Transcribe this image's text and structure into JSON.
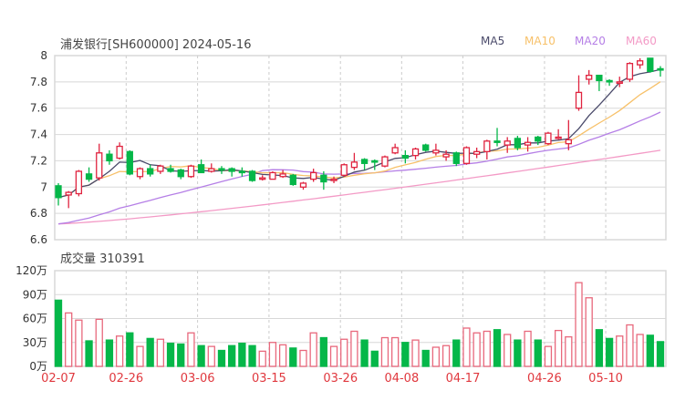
{
  "header": {
    "title": "浦发银行[SH600000] 2024-05-16"
  },
  "legend": [
    {
      "label": "MA5",
      "color": "#4a4a6a"
    },
    {
      "label": "MA10",
      "color": "#f7c16a"
    },
    {
      "label": "MA20",
      "color": "#b57fe6"
    },
    {
      "label": "MA60",
      "color": "#f39ac6"
    }
  ],
  "volume_panel": {
    "title": "成交量 310391"
  },
  "colors": {
    "up": "#e0233f",
    "down": "#05b749",
    "grid": "#d8d8d8"
  },
  "chart_data": [
    {
      "type": "candlestick",
      "title": "浦发银行[SH600000] 2024-05-16",
      "ylim": [
        6.6,
        8
      ],
      "yticks": [
        "6.6",
        "6.8",
        "7",
        "7.2",
        "7.4",
        "7.6",
        "7.8",
        "8"
      ],
      "xticks": [
        {
          "index": 0,
          "label": "02-07"
        },
        {
          "index": 7,
          "label": "02-26"
        },
        {
          "index": 14,
          "label": "03-06"
        },
        {
          "index": 21,
          "label": "03-15"
        },
        {
          "index": 28,
          "label": "03-26"
        },
        {
          "index": 34,
          "label": "04-08"
        },
        {
          "index": 40,
          "label": "04-17"
        },
        {
          "index": 48,
          "label": "04-26"
        },
        {
          "index": 54,
          "label": "05-10"
        }
      ],
      "ohlc": [
        [
          7.01,
          7.03,
          6.86,
          6.92
        ],
        [
          6.94,
          6.97,
          6.84,
          6.96
        ],
        [
          6.95,
          7.13,
          6.93,
          7.12
        ],
        [
          7.1,
          7.15,
          7.04,
          7.06
        ],
        [
          7.07,
          7.33,
          7.05,
          7.26
        ],
        [
          7.25,
          7.28,
          7.17,
          7.2
        ],
        [
          7.22,
          7.34,
          7.21,
          7.31
        ],
        [
          7.27,
          7.28,
          7.09,
          7.1
        ],
        [
          7.08,
          7.15,
          7.06,
          7.14
        ],
        [
          7.14,
          7.17,
          7.08,
          7.1
        ],
        [
          7.12,
          7.17,
          7.1,
          7.16
        ],
        [
          7.14,
          7.17,
          7.11,
          7.12
        ],
        [
          7.13,
          7.14,
          7.06,
          7.08
        ],
        [
          7.08,
          7.17,
          7.07,
          7.16
        ],
        [
          7.17,
          7.21,
          7.11,
          7.11
        ],
        [
          7.12,
          7.18,
          7.11,
          7.14
        ],
        [
          7.14,
          7.16,
          7.1,
          7.13
        ],
        [
          7.14,
          7.15,
          7.08,
          7.12
        ],
        [
          7.12,
          7.15,
          7.08,
          7.11
        ],
        [
          7.12,
          7.13,
          7.04,
          7.05
        ],
        [
          7.06,
          7.09,
          7.05,
          7.07
        ],
        [
          7.06,
          7.12,
          7.06,
          7.11
        ],
        [
          7.08,
          7.13,
          7.07,
          7.1
        ],
        [
          7.09,
          7.1,
          7.01,
          7.02
        ],
        [
          7.0,
          7.04,
          6.98,
          7.03
        ],
        [
          7.06,
          7.14,
          7.04,
          7.11
        ],
        [
          7.09,
          7.12,
          6.98,
          7.04
        ],
        [
          7.05,
          7.08,
          7.03,
          7.06
        ],
        [
          7.09,
          7.18,
          7.08,
          7.17
        ],
        [
          7.15,
          7.26,
          7.13,
          7.19
        ],
        [
          7.21,
          7.22,
          7.13,
          7.18
        ],
        [
          7.2,
          7.21,
          7.13,
          7.19
        ],
        [
          7.16,
          7.24,
          7.15,
          7.23
        ],
        [
          7.26,
          7.33,
          7.25,
          7.3
        ],
        [
          7.24,
          7.28,
          7.18,
          7.22
        ],
        [
          7.24,
          7.3,
          7.21,
          7.29
        ],
        [
          7.32,
          7.33,
          7.27,
          7.28
        ],
        [
          7.26,
          7.33,
          7.24,
          7.28
        ],
        [
          7.23,
          7.28,
          7.2,
          7.25
        ],
        [
          7.26,
          7.27,
          7.16,
          7.18
        ],
        [
          7.18,
          7.31,
          7.17,
          7.3
        ],
        [
          7.25,
          7.3,
          7.22,
          7.27
        ],
        [
          7.27,
          7.36,
          7.21,
          7.35
        ],
        [
          7.35,
          7.45,
          7.31,
          7.34
        ],
        [
          7.32,
          7.38,
          7.26,
          7.35
        ],
        [
          7.37,
          7.39,
          7.28,
          7.3
        ],
        [
          7.32,
          7.38,
          7.27,
          7.34
        ],
        [
          7.38,
          7.39,
          7.32,
          7.35
        ],
        [
          7.33,
          7.42,
          7.32,
          7.41
        ],
        [
          7.37,
          7.44,
          7.36,
          7.38
        ],
        [
          7.33,
          7.51,
          7.28,
          7.36
        ],
        [
          7.6,
          7.85,
          7.58,
          7.72
        ],
        [
          7.82,
          7.89,
          7.78,
          7.85
        ],
        [
          7.85,
          7.85,
          7.73,
          7.81
        ],
        [
          7.81,
          7.82,
          7.77,
          7.8
        ],
        [
          7.79,
          7.84,
          7.76,
          7.8
        ],
        [
          7.82,
          7.95,
          7.8,
          7.94
        ],
        [
          7.93,
          7.98,
          7.9,
          7.96
        ],
        [
          7.98,
          7.98,
          7.87,
          7.88
        ],
        [
          7.9,
          7.92,
          7.84,
          7.89
        ]
      ],
      "ma60": {
        "start": 6.72,
        "end": 7.28
      }
    },
    {
      "type": "bar",
      "title": "成交量 310391",
      "unit": "万",
      "ylim": [
        0,
        120
      ],
      "yticks": [
        "0万",
        "30万",
        "60万",
        "90万",
        "120万"
      ],
      "values": [
        83,
        67,
        58,
        32,
        59,
        33,
        38,
        42,
        25,
        35,
        34,
        29,
        28,
        42,
        26,
        25,
        20,
        26,
        29,
        26,
        19,
        30,
        27,
        23,
        20,
        42,
        36,
        25,
        34,
        44,
        33,
        19,
        36,
        36,
        30,
        33,
        20,
        24,
        26,
        33,
        48,
        42,
        44,
        46,
        40,
        33,
        44,
        33,
        25,
        45,
        37,
        105,
        86,
        46,
        35,
        38,
        52,
        40,
        39,
        31
      ]
    }
  ]
}
